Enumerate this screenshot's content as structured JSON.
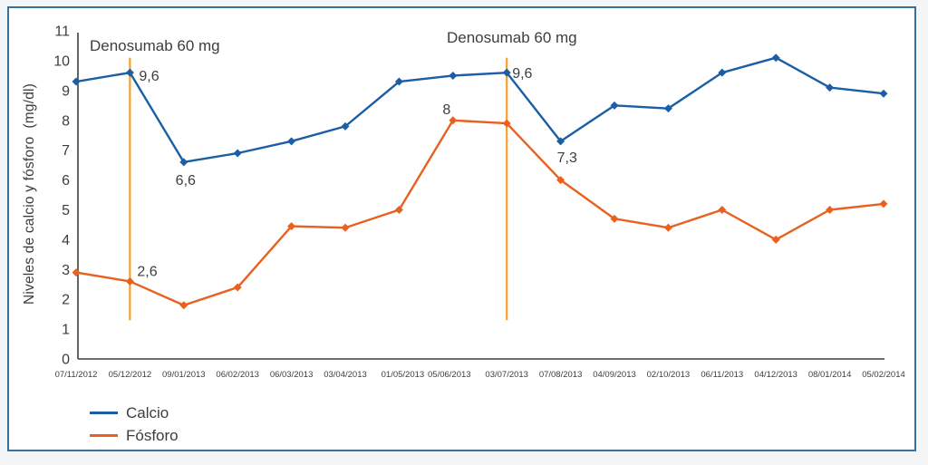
{
  "figure": {
    "page_background": "#f3f5f6",
    "plot_background": "#ffffff",
    "border_color": "#35719b"
  },
  "chart_data": {
    "type": "line",
    "title": "",
    "xlabel": "",
    "ylabel": "Niveles de calcio y fósforo  (mg/dl)",
    "ylim": [
      0,
      11
    ],
    "yticks": [
      0,
      1,
      2,
      3,
      4,
      5,
      6,
      7,
      8,
      9,
      10,
      11
    ],
    "grid": false,
    "legend_position": "bottom-left",
    "axis_color": "#3e3e3e",
    "text_color": "#3d3d3d",
    "categories": [
      "07/11/2012",
      "05/12/2012",
      "09/01/2013",
      "06/02/2013",
      "06/03/2013",
      "03/04/2013",
      "01/05/2013",
      "05/06/2013",
      "03/07/2013",
      "07/08/2013",
      "04/09/2013",
      "02/10/2013",
      "06/11/2013",
      "04/12/2013",
      "08/01/2014",
      "05/02/2014"
    ],
    "series": [
      {
        "name": "Calcio",
        "color": "#1b5ea6",
        "values": [
          9.3,
          9.6,
          6.6,
          6.9,
          7.3,
          7.8,
          9.3,
          9.5,
          9.6,
          7.3,
          8.5,
          8.4,
          9.6,
          10.1,
          9.1,
          8.9
        ]
      },
      {
        "name": "Fósforo",
        "color": "#e8611f",
        "values": [
          2.9,
          2.6,
          1.8,
          2.4,
          4.45,
          4.4,
          5.0,
          8.0,
          7.9,
          6.0,
          4.7,
          4.4,
          5.0,
          4.0,
          5.0,
          5.2
        ]
      }
    ],
    "events": [
      {
        "label": "Denosumab 60 mg",
        "category": "05/12/2012",
        "category_index": 1,
        "line_color": "#f3a02c",
        "y_from": 1.3,
        "y_to": 10.1
      },
      {
        "label": "Denosumab 60 mg",
        "category": "03/07/2013",
        "category_index": 8,
        "line_color": "#f3a02c",
        "y_from": 1.3,
        "y_to": 10.1
      }
    ],
    "annotations": [
      {
        "series": 0,
        "index": 1,
        "text": "9,6"
      },
      {
        "series": 0,
        "index": 2,
        "text": "6,6"
      },
      {
        "series": 0,
        "index": 8,
        "text": "9,6"
      },
      {
        "series": 0,
        "index": 9,
        "text": "7,3"
      },
      {
        "series": 1,
        "index": 1,
        "text": "2,6"
      },
      {
        "series": 1,
        "index": 7,
        "text": "8"
      }
    ]
  }
}
